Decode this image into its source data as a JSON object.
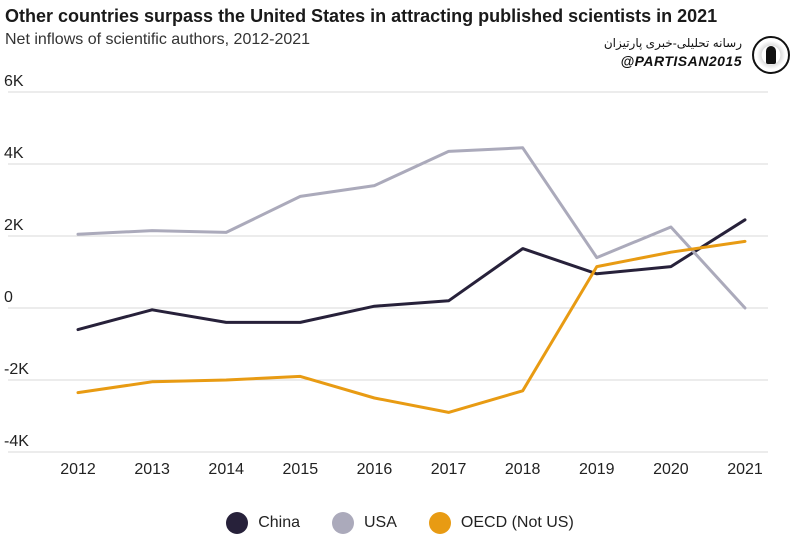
{
  "header": {
    "title": "Other countries surpass the United States in attracting published scientists in 2021",
    "subtitle": "Net inflows of scientific authors, 2012-2021"
  },
  "brand": {
    "persian_text": "رسانه تحلیلی-خبری پارتیزان",
    "handle": "@PARTISAN2015"
  },
  "chart_data": {
    "type": "line",
    "title": "Other countries surpass the United States in attracting published scientists in 2021",
    "subtitle": "Net inflows of scientific authors, 2012-2021",
    "x": [
      "2012",
      "2013",
      "2014",
      "2015",
      "2016",
      "2017",
      "2018",
      "2019",
      "2020",
      "2021"
    ],
    "y_ticks": [
      -4000,
      -2000,
      0,
      2000,
      4000,
      6000
    ],
    "y_tick_labels": [
      "-4K",
      "-2K",
      "0",
      "2K",
      "4K",
      "6K"
    ],
    "ylim": [
      -4000,
      6000
    ],
    "grid": "horizontal",
    "legend_placement": "bottom-center",
    "series": [
      {
        "name": "China",
        "color": "#27213a",
        "values": [
          -600,
          -50,
          -400,
          -400,
          50,
          200,
          1650,
          950,
          1150,
          2450
        ]
      },
      {
        "name": "USA",
        "color": "#abaabb",
        "values": [
          2050,
          2150,
          2100,
          3100,
          3400,
          4350,
          4450,
          1400,
          2250,
          0
        ]
      },
      {
        "name": "OECD (Not US)",
        "color": "#e89b13",
        "values": [
          -2350,
          -2050,
          -2000,
          -1900,
          -2500,
          -2900,
          -2300,
          1150,
          1550,
          1850
        ]
      }
    ]
  }
}
